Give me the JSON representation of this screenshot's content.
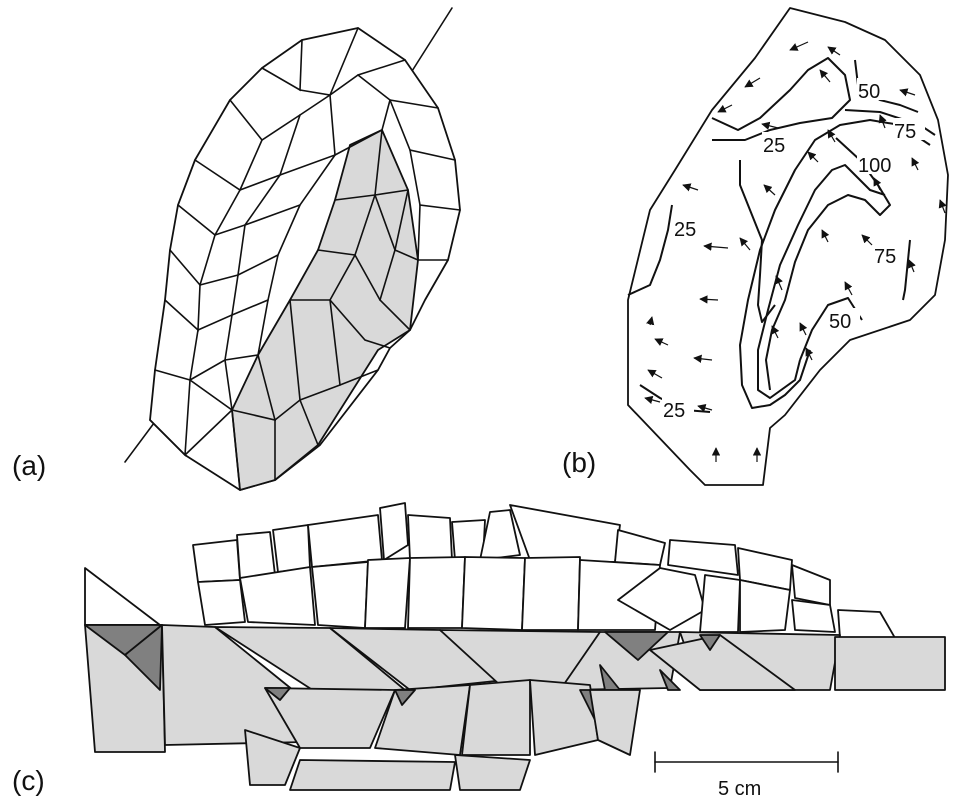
{
  "panels": [
    {
      "id": "a",
      "label": "(a)"
    },
    {
      "id": "b",
      "label": "(b)"
    },
    {
      "id": "c",
      "label": "(c)"
    }
  ],
  "contour_labels": [
    "50",
    "75",
    "25",
    "100",
    "25",
    "75",
    "50",
    "25"
  ],
  "scale_bar": {
    "label": "5 cm"
  },
  "colors": {
    "line": "#111111",
    "light_shade": "#d9d9d9",
    "dark_shade": "#808080",
    "background": "#ffffff"
  }
}
